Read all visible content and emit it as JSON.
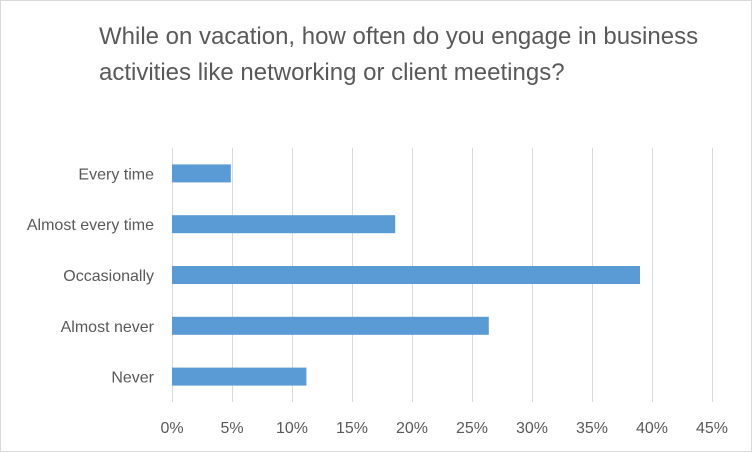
{
  "chart_data": {
    "type": "bar",
    "orientation": "horizontal",
    "title": "While on vacation, how often do you engage in business activities like networking or client meetings?",
    "categories": [
      "Every time",
      "Almost every time",
      "Occasionally",
      "Almost never",
      "Never"
    ],
    "values": [
      4.9,
      18.6,
      39.0,
      26.4,
      11.2
    ],
    "xlim": [
      0,
      45
    ],
    "x_ticks": [
      "0%",
      "5%",
      "10%",
      "15%",
      "20%",
      "25%",
      "30%",
      "35%",
      "40%",
      "45%"
    ],
    "grid": "vertical",
    "legend": "none",
    "bar_color": "#5b9bd5",
    "grid_color": "#d9d9d9"
  }
}
